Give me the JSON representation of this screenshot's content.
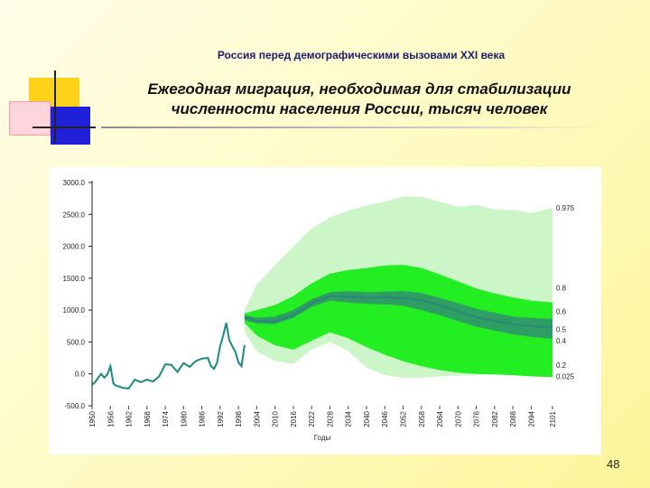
{
  "slide": {
    "supertitle": "Россия перед демографическими вызовами XXI века",
    "title_line1": "Ежегодная миграция, необходимая для стабилизации",
    "title_line2": "численности населения России,  тысяч человек",
    "page_number": "48"
  },
  "colors": {
    "band_outer": "#ccf5c8",
    "band_mid": "#22ee22",
    "band_inner": "#2f9e62",
    "median_line": "#2a8a7a",
    "history_line": "#1a8a7a"
  },
  "chart_data": {
    "type": "area",
    "title": "",
    "xlabel": "Годы",
    "ylabel": "",
    "xlim": [
      1950,
      2101
    ],
    "ylim": [
      -500,
      3000
    ],
    "y_ticks": [
      "3000.0",
      "2500.0",
      "2000.0",
      "1500.0",
      "1000.0",
      "500.0",
      "0.0",
      "-500.0"
    ],
    "x_ticks": [
      "1950",
      "1956",
      "1962",
      "1968",
      "1974",
      "1980",
      "1986",
      "1992",
      "1998",
      "2004",
      "2010",
      "2016",
      "2022",
      "2028",
      "2034",
      "2040",
      "2046",
      "2052",
      "2058",
      "2064",
      "2070",
      "2076",
      "2082",
      "2088",
      "2094",
      "2101"
    ],
    "grid": false,
    "band_labels": [
      {
        "text": "0.975",
        "y": 2600
      },
      {
        "text": "0.8",
        "y": 1350
      },
      {
        "text": "0.6",
        "y": 980
      },
      {
        "text": "0.5",
        "y": 700
      },
      {
        "text": "0.4",
        "y": 520
      },
      {
        "text": "0.2",
        "y": 140
      },
      {
        "text": "0.025",
        "y": -40
      }
    ],
    "history": {
      "x": [
        1950,
        1951,
        1952,
        1953,
        1954,
        1955,
        1956,
        1957,
        1958,
        1959,
        1960,
        1962,
        1964,
        1966,
        1968,
        1970,
        1972,
        1974,
        1976,
        1978,
        1980,
        1982,
        1984,
        1986,
        1988,
        1989,
        1990,
        1991,
        1992,
        1993,
        1994,
        1995,
        1996,
        1997,
        1998,
        1999,
        2000
      ],
      "y": [
        -170,
        -130,
        -60,
        0,
        -60,
        -10,
        120,
        -150,
        -190,
        -200,
        -220,
        -230,
        -90,
        -130,
        -90,
        -120,
        -40,
        150,
        140,
        30,
        170,
        110,
        200,
        240,
        250,
        120,
        80,
        180,
        440,
        600,
        800,
        530,
        430,
        350,
        180,
        120,
        450
      ]
    },
    "forecast": {
      "x": [
        2000,
        2004,
        2010,
        2016,
        2022,
        2028,
        2034,
        2040,
        2046,
        2052,
        2058,
        2064,
        2070,
        2076,
        2082,
        2088,
        2094,
        2101
      ],
      "q025": [
        650,
        350,
        200,
        160,
        380,
        500,
        360,
        100,
        -20,
        -60,
        -60,
        -40,
        -30,
        -20,
        -10,
        -10,
        -20,
        -30
      ],
      "q20": [
        800,
        600,
        450,
        380,
        520,
        650,
        560,
        420,
        300,
        200,
        120,
        60,
        20,
        0,
        -10,
        -20,
        -40,
        -50
      ],
      "q40": [
        840,
        790,
        780,
        880,
        1050,
        1150,
        1120,
        1100,
        1090,
        1070,
        1000,
        920,
        830,
        740,
        680,
        620,
        580,
        550
      ],
      "q50": [
        880,
        830,
        820,
        920,
        1110,
        1220,
        1210,
        1190,
        1200,
        1190,
        1150,
        1080,
        980,
        890,
        830,
        780,
        750,
        730
      ],
      "q60": [
        920,
        880,
        900,
        1000,
        1170,
        1280,
        1300,
        1280,
        1290,
        1300,
        1270,
        1190,
        1110,
        1020,
        960,
        900,
        880,
        860
      ],
      "q80": [
        950,
        1000,
        1080,
        1220,
        1420,
        1570,
        1630,
        1660,
        1700,
        1710,
        1660,
        1560,
        1450,
        1340,
        1260,
        1200,
        1150,
        1120
      ],
      "q975": [
        1000,
        1400,
        1700,
        2000,
        2280,
        2450,
        2560,
        2640,
        2700,
        2780,
        2780,
        2700,
        2620,
        2650,
        2580,
        2570,
        2520,
        2600
      ]
    }
  }
}
